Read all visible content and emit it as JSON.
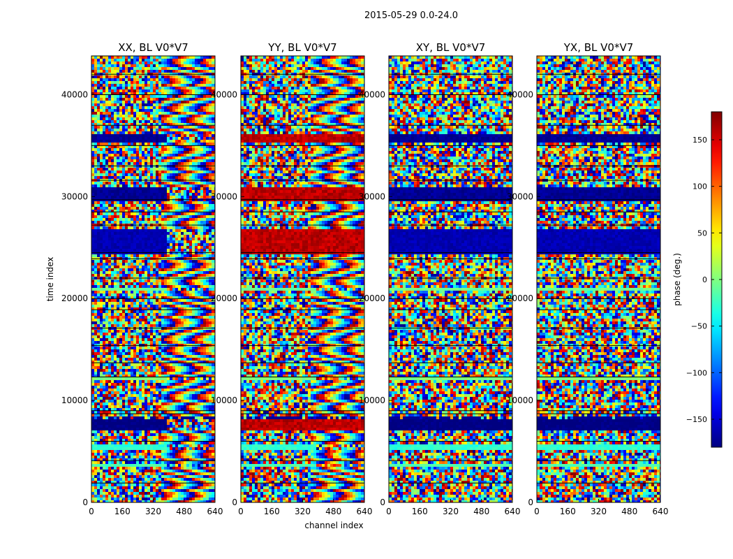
{
  "figure": {
    "suptitle": "2015-05-29 0.0-24.0"
  },
  "chart_data": [
    {
      "type": "heatmap",
      "title": "XX, BL V0*V7",
      "xlabel": "",
      "ylabel": "time index",
      "xlim": [
        0,
        640
      ],
      "ylim": [
        0,
        43800
      ],
      "xticks": [
        "0",
        "160",
        "320",
        "480",
        "640"
      ],
      "yticks": [
        "0",
        "10000",
        "20000",
        "30000",
        "40000"
      ],
      "values": "phase (deg.)"
    },
    {
      "type": "heatmap",
      "title": "YY, BL V0*V7",
      "xlabel": "channel index",
      "ylabel": "",
      "xlim": [
        0,
        640
      ],
      "ylim": [
        0,
        43800
      ],
      "xticks": [
        "0",
        "160",
        "320",
        "480",
        "640"
      ],
      "yticks": [
        "0",
        "10000",
        "20000",
        "30000",
        "40000"
      ]
    },
    {
      "type": "heatmap",
      "title": "XY, BL V0*V7",
      "xlabel": "",
      "ylabel": "",
      "xlim": [
        0,
        640
      ],
      "ylim": [
        0,
        43800
      ],
      "xticks": [
        "0",
        "160",
        "320",
        "480",
        "640"
      ],
      "yticks": [
        "0",
        "10000",
        "20000",
        "30000",
        "40000"
      ]
    },
    {
      "type": "heatmap",
      "title": "YX, BL V0*V7",
      "xlabel": "",
      "ylabel": "",
      "xlim": [
        0,
        640
      ],
      "ylim": [
        0,
        43800
      ],
      "xticks": [
        "0",
        "160",
        "320",
        "480",
        "640"
      ],
      "yticks": [
        "0",
        "10000",
        "20000",
        "30000",
        "40000"
      ]
    }
  ],
  "colorbar": {
    "label": "phase (deg.)",
    "range": [
      -180,
      180
    ],
    "colormap": "jet",
    "ticks": [
      "150",
      "100",
      "50",
      "0",
      "−50",
      "−100",
      "−150"
    ],
    "tick_values": [
      150,
      100,
      50,
      0,
      -50,
      -100,
      -150
    ]
  }
}
